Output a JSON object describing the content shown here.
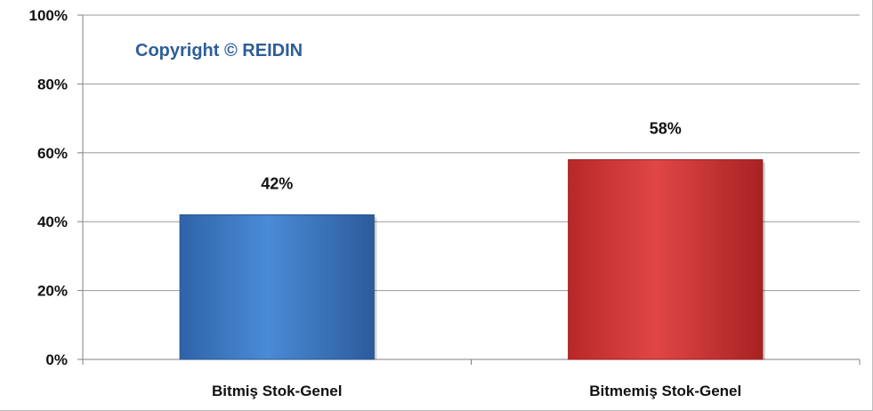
{
  "chart_data": {
    "type": "bar",
    "categories": [
      "Bitmiş Stok-Genel",
      "Bitmemiş Stok-Genel"
    ],
    "values": [
      42,
      58
    ],
    "data_labels": [
      "42%",
      "58%"
    ],
    "colors": [
      "#3f7cc9",
      "#d63a3a"
    ],
    "ylim": [
      0,
      100
    ],
    "yticks": [
      0,
      20,
      40,
      60,
      80,
      100
    ],
    "ytick_labels": [
      "0%",
      "20%",
      "40%",
      "60%",
      "80%",
      "100%"
    ],
    "grid": true,
    "legend": "none",
    "title": "",
    "xlabel": "",
    "ylabel": ""
  },
  "watermark": "Copyright © REIDIN"
}
